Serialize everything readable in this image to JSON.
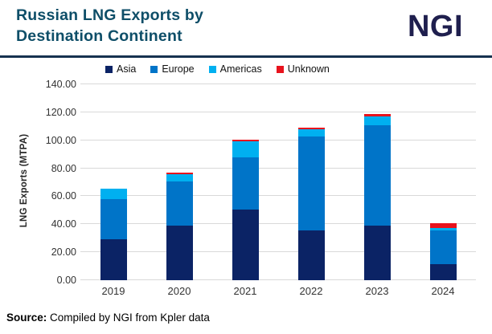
{
  "header": {
    "title": "Russian LNG Exports by\nDestination Continent",
    "logo": "NGI"
  },
  "colors": {
    "title_teal": "#0e4e68",
    "divider_navy": "#16324f",
    "logo_navy": "#1f1f4e",
    "gridline_gray": "#d9d9d9"
  },
  "chart_data": {
    "type": "bar",
    "stacked": true,
    "categories": [
      "2019",
      "2020",
      "2021",
      "2022",
      "2023",
      "2024"
    ],
    "series": [
      {
        "name": "Asia",
        "color": "#0b2365",
        "values": [
          29.0,
          39.0,
          50.5,
          35.5,
          39.0,
          11.5
        ]
      },
      {
        "name": "Europe",
        "color": "#0074c8",
        "values": [
          29.0,
          31.5,
          37.5,
          67.0,
          72.0,
          24.0
        ]
      },
      {
        "name": "Americas",
        "color": "#00b0f0",
        "values": [
          7.5,
          5.5,
          11.5,
          5.5,
          6.0,
          2.0
        ]
      },
      {
        "name": "Unknown",
        "color": "#e8131d",
        "values": [
          0.0,
          1.0,
          1.0,
          1.0,
          1.5,
          3.0
        ]
      }
    ],
    "totals": [
      65.5,
      77.0,
      100.5,
      109.0,
      118.5,
      40.5
    ],
    "ylabel": "LNG Exports (MTPA)",
    "xlabel": "",
    "ylim": [
      0,
      140
    ],
    "ytick_step": 20,
    "yticks": [
      "0.00",
      "20.00",
      "40.00",
      "60.00",
      "80.00",
      "100.00",
      "120.00",
      "140.00"
    ],
    "grid": true,
    "legend_position": "top"
  },
  "source": {
    "prefix": "Source:",
    "text": " Compiled by NGI from Kpler data"
  }
}
